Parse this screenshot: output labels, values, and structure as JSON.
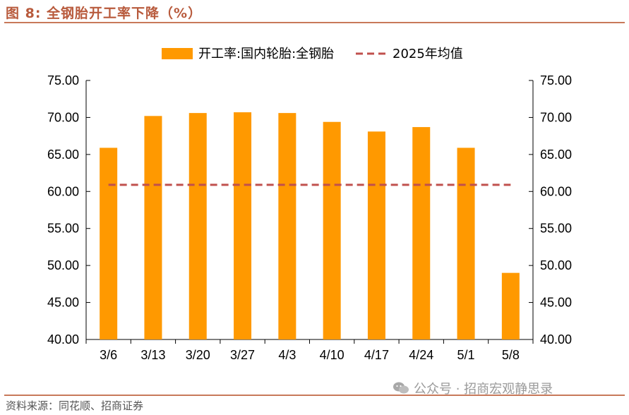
{
  "figure_title": "图 8:  全钢胎开工率下降（%）",
  "source_note": "资料来源：同花顺、招商证券",
  "watermark": {
    "icon": "wechat-icon",
    "text": "公众号 · 招商宏观静思录"
  },
  "colors": {
    "bar": "#FF9900",
    "line": "#C0504D",
    "title": "#B85A3C",
    "rule": "#C8795A"
  },
  "chart_data": {
    "type": "bar",
    "categories": [
      "3/6",
      "3/13",
      "3/20",
      "3/27",
      "4/3",
      "4/10",
      "4/17",
      "4/24",
      "5/1",
      "5/8"
    ],
    "series": [
      {
        "name": "开工率:国内轮胎:全钢胎",
        "type": "bar",
        "values": [
          65.9,
          70.2,
          70.6,
          70.7,
          70.6,
          69.4,
          68.1,
          68.7,
          65.9,
          49.0
        ]
      },
      {
        "name": "2025年均值",
        "type": "line",
        "style": "dashed",
        "values": [
          60.9,
          60.9,
          60.9,
          60.9,
          60.9,
          60.9,
          60.9,
          60.9,
          60.9,
          60.9
        ]
      }
    ],
    "ylim": [
      40,
      75
    ],
    "yticks": [
      "40.00",
      "45.00",
      "50.00",
      "55.00",
      "60.00",
      "65.00",
      "70.00",
      "75.00"
    ],
    "y2ticks": [
      "40.00",
      "45.00",
      "50.00",
      "55.00",
      "60.00",
      "65.00",
      "70.00",
      "75.00"
    ],
    "grid": false,
    "legend_position": "top-center"
  }
}
